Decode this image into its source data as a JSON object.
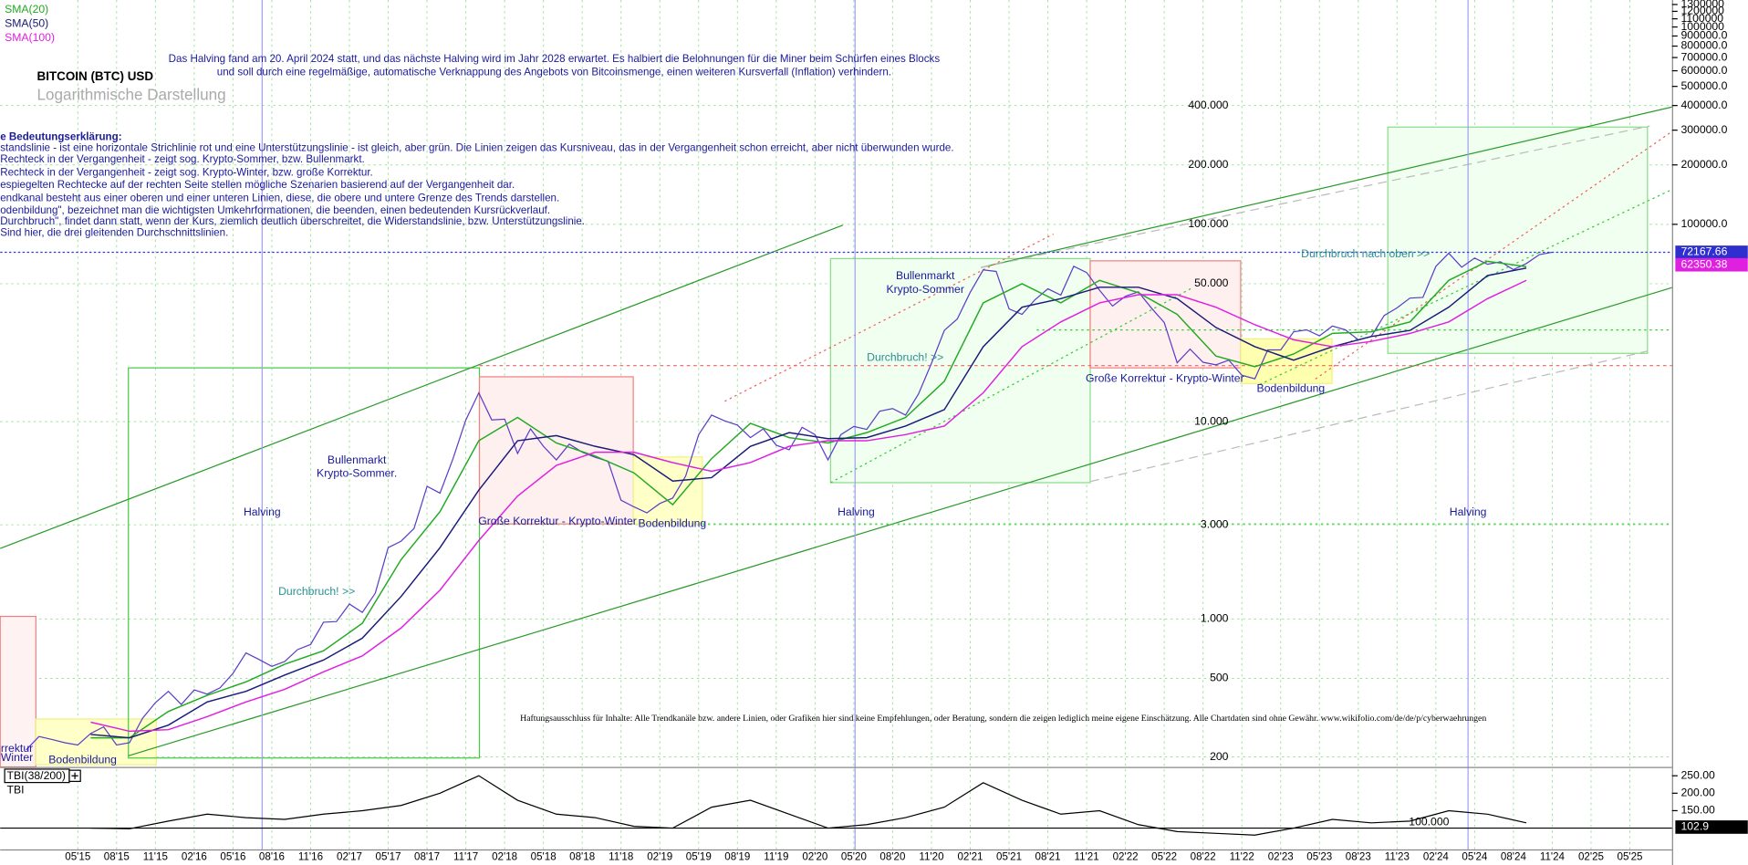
{
  "chart_data": [
    {
      "type": "line",
      "title": "BITCOIN (BTC) USD",
      "subtitle": "Logarithmische Darstellung",
      "log_scale": true,
      "grid": true,
      "halving_note": [
        "Das Halving fand am 20. April 2024 statt, und das nächste Halving wird im Jahr 2028 erwartet. Es halbiert die Belohnungen für die Miner beim Schürfen eines Blocks",
        "und soll durch eine regelmäßige, automatische Verknappung des Angebots von Bitcoinsmenge, einen weiteren Kursverfall (Inflation) verhindern."
      ],
      "notes": [
        "e Bedeutungserklärung:",
        "standslinie - ist eine horizontale Strichlinie rot und eine Unterstützungslinie - ist gleich, aber grün. Die Linien zeigen das Kursniveau, das in der Vergangenheit schon erreicht, aber nicht überwunden wurde.",
        "Rechteck in der Vergangenheit - zeigt sog. Krypto-Sommer, bzw. Bullenmarkt.",
        "Rechteck in der Vergangenheit - zeigt sog. Krypto-Winter, bzw. große Korrektur.",
        "espiegelten Rechtecke auf der rechten Seite stellen mögliche Szenarien basierend auf der Vergangenheit dar.",
        "endkanal besteht aus einer oberen und einer unteren Linien, diese, die obere und untere Grenze des Trends darstellen.",
        "odenbildung\", bezeichnet man die wichtigsten Umkehrformationen, die beenden, einen bedeutenden Kursrückverlauf.",
        "Durchbruch\", findet dann statt, wenn der Kurs, ziemlich deutlich überschreitet, die Widerstandslinie, bzw. Unterstützungslinie.",
        "Sind hier, die drei gleitenden Durchschnittslinien."
      ],
      "annotations": [
        "Bullenmarkt",
        "Krypto-Sommer.",
        "Halving",
        "Durchbruch! >>",
        "Große Korrektur - Krypto-Winter",
        "Bodenbildung",
        "Halving",
        "Bullenmarkt",
        "Krypto-Sommer",
        "Durchbruch! >>",
        "Große Korrektur - Krypto-Winter",
        "Bodenbildung",
        "Durchbruch nach oben >>",
        "Halving",
        "rrektur",
        "Winter",
        "Bodenbildung"
      ],
      "disclaimer": "Haftungsausschluss für Inhalte: Alle Trendkanäle bzw. andere Linien, oder Grafiken hier sind keine Empfehlungen, oder Beratung, sondern die zeigen lediglich meine eigene Einschätzung. Alle Chartdaten sind ohne Gewähr.  www.wikifolio.com/de/de/p/cyberwaehrungen",
      "xlim": [
        "2014-11",
        "2025-08"
      ],
      "ylim": [
        178,
        1370000
      ],
      "yticks": [
        {
          "value": 400000,
          "label": "400.000"
        },
        {
          "value": 200000,
          "label": "200.000"
        },
        {
          "value": 100000,
          "label": "100.000"
        },
        {
          "value": 50000,
          "label": "50.000"
        },
        {
          "value": 10000,
          "label": "10.000"
        },
        {
          "value": 3000,
          "label": "3.000"
        },
        {
          "value": 1000,
          "label": "1.000"
        },
        500,
        200
      ],
      "y2lim": [
        178,
        1370000
      ],
      "y2ticks": [
        1300000,
        1200000,
        1100000,
        1000000,
        {
          "value": 900000,
          "label": "900000.0"
        },
        {
          "value": 800000,
          "label": "800000.0"
        },
        {
          "value": 700000,
          "label": "700000.0"
        },
        {
          "value": 600000,
          "label": "600000.0"
        },
        {
          "value": 500000,
          "label": "500000.0"
        },
        {
          "value": 400000,
          "label": "400000.0"
        },
        {
          "value": 300000,
          "label": "300000.0"
        },
        {
          "value": 200000,
          "label": "200000.0"
        },
        {
          "value": 100000,
          "label": "100000.0"
        }
      ],
      "last_price": 72167.66,
      "sma_last": 62350.38,
      "series": [
        {
          "color": "#5a3cc8",
          "x": [
            "2015-01",
            "2015-02",
            "2015-03",
            "2015-04",
            "2015-05",
            "2015-06",
            "2015-07",
            "2015-08",
            "2015-09",
            "2015-10",
            "2015-11",
            "2015-12",
            "2016-01",
            "2016-02",
            "2016-03",
            "2016-04",
            "2016-05",
            "2016-06",
            "2016-07",
            "2016-08",
            "2016-09",
            "2016-10",
            "2016-11",
            "2016-12",
            "2017-01",
            "2017-02",
            "2017-03",
            "2017-04",
            "2017-05",
            "2017-06",
            "2017-07",
            "2017-08",
            "2017-09",
            "2017-10",
            "2017-11",
            "2017-12",
            "2018-01",
            "2018-02",
            "2018-03",
            "2018-04",
            "2018-05",
            "2018-06",
            "2018-07",
            "2018-08",
            "2018-09",
            "2018-10",
            "2018-11",
            "2018-12",
            "2019-01",
            "2019-02",
            "2019-03",
            "2019-04",
            "2019-05",
            "2019-06",
            "2019-07",
            "2019-08",
            "2019-09",
            "2019-10",
            "2019-11",
            "2019-12",
            "2020-01",
            "2020-02",
            "2020-03",
            "2020-04",
            "2020-05",
            "2020-06",
            "2020-07",
            "2020-08",
            "2020-09",
            "2020-10",
            "2020-11",
            "2020-12",
            "2021-01",
            "2021-02",
            "2021-03",
            "2021-04",
            "2021-05",
            "2021-06",
            "2021-07",
            "2021-08",
            "2021-09",
            "2021-10",
            "2021-11",
            "2021-12",
            "2022-01",
            "2022-02",
            "2022-03",
            "2022-04",
            "2022-05",
            "2022-06",
            "2022-07",
            "2022-08",
            "2022-09",
            "2022-10",
            "2022-11",
            "2022-12",
            "2023-01",
            "2023-02",
            "2023-03",
            "2023-04",
            "2023-05",
            "2023-06",
            "2023-07",
            "2023-08",
            "2023-09",
            "2023-10",
            "2023-11",
            "2023-12",
            "2024-01",
            "2024-02",
            "2024-03",
            "2024-04",
            "2024-05",
            "2024-06",
            "2024-07",
            "2024-08",
            "2024-09",
            "2024-10",
            "2024-11"
          ],
          "values": [
            217,
            254,
            245,
            236,
            230,
            263,
            284,
            230,
            236,
            314,
            377,
            430,
            369,
            437,
            416,
            448,
            531,
            673,
            624,
            575,
            609,
            700,
            742,
            963,
            970,
            1190,
            1080,
            1350,
            2300,
            2480,
            2875,
            4700,
            4340,
            6470,
            10200,
            14000,
            10200,
            10300,
            6900,
            9200,
            7500,
            6400,
            7700,
            7000,
            6600,
            6300,
            4000,
            3700,
            3450,
            3850,
            4100,
            5300,
            8600,
            10800,
            10100,
            9600,
            8300,
            9200,
            7600,
            7200,
            9350,
            8600,
            6400,
            8600,
            9450,
            9140,
            11300,
            11650,
            10800,
            13800,
            19700,
            29000,
            33100,
            45200,
            58800,
            57700,
            37300,
            35000,
            41500,
            47100,
            43800,
            61300,
            57000,
            46300,
            38500,
            43200,
            45500,
            37700,
            31800,
            19900,
            23300,
            20000,
            19400,
            20500,
            17200,
            16500,
            23100,
            23100,
            28500,
            29200,
            27200,
            30500,
            29200,
            26000,
            27000,
            34500,
            37700,
            42300,
            42600,
            61200,
            71300,
            60600,
            67500,
            62700,
            64600,
            58900,
            63300,
            70200,
            72167.66
          ]
        },
        {
          "name": "SMA(20)",
          "color": "#22aa22",
          "x": [
            "2015-06",
            "2015-09",
            "2015-12",
            "2016-03",
            "2016-06",
            "2016-09",
            "2016-12",
            "2017-03",
            "2017-06",
            "2017-09",
            "2017-12",
            "2018-03",
            "2018-06",
            "2018-09",
            "2018-12",
            "2019-03",
            "2019-06",
            "2019-09",
            "2019-12",
            "2020-03",
            "2020-06",
            "2020-09",
            "2020-12",
            "2021-03",
            "2021-06",
            "2021-09",
            "2021-12",
            "2022-03",
            "2022-06",
            "2022-09",
            "2022-12",
            "2023-03",
            "2023-06",
            "2023-09",
            "2023-12",
            "2024-03",
            "2024-06",
            "2024-09"
          ],
          "values": [
            250,
            250,
            340,
            410,
            480,
            590,
            690,
            950,
            2000,
            3500,
            8000,
            10500,
            7800,
            6700,
            5500,
            3800,
            6500,
            9800,
            8300,
            7800,
            8800,
            10500,
            16000,
            40000,
            50000,
            40000,
            52000,
            45000,
            35000,
            21500,
            19000,
            22000,
            28000,
            28500,
            32000,
            52000,
            65000,
            61000
          ]
        },
        {
          "name": "SMA(50)",
          "color": "#1a1a7a",
          "x": [
            "2015-06",
            "2015-09",
            "2015-12",
            "2016-03",
            "2016-06",
            "2016-09",
            "2016-12",
            "2017-03",
            "2017-06",
            "2017-09",
            "2017-12",
            "2018-03",
            "2018-06",
            "2018-09",
            "2018-12",
            "2019-03",
            "2019-06",
            "2019-09",
            "2019-12",
            "2020-03",
            "2020-06",
            "2020-09",
            "2020-12",
            "2021-03",
            "2021-06",
            "2021-09",
            "2021-12",
            "2022-03",
            "2022-06",
            "2022-09",
            "2022-12",
            "2023-03",
            "2023-06",
            "2023-09",
            "2023-12",
            "2024-03",
            "2024-06",
            "2024-09"
          ],
          "values": [
            260,
            250,
            290,
            380,
            430,
            520,
            620,
            800,
            1300,
            2300,
            4500,
            8000,
            8500,
            7500,
            6800,
            5000,
            5200,
            7500,
            8800,
            8200,
            8300,
            9500,
            11500,
            24000,
            38000,
            42000,
            48000,
            48000,
            42000,
            30000,
            24000,
            20500,
            24000,
            27000,
            29000,
            38000,
            55000,
            60000
          ]
        },
        {
          "name": "SMA(100)",
          "color": "#e020e0",
          "x": [
            "2015-06",
            "2015-09",
            "2015-12",
            "2016-03",
            "2016-06",
            "2016-09",
            "2016-12",
            "2017-03",
            "2017-06",
            "2017-09",
            "2017-12",
            "2018-03",
            "2018-06",
            "2018-09",
            "2018-12",
            "2019-03",
            "2019-06",
            "2019-09",
            "2019-12",
            "2020-03",
            "2020-06",
            "2020-09",
            "2020-12",
            "2021-03",
            "2021-06",
            "2021-09",
            "2021-12",
            "2022-03",
            "2022-06",
            "2022-09",
            "2022-12",
            "2023-03",
            "2023-06",
            "2023-09",
            "2023-12",
            "2024-03",
            "2024-06",
            "2024-09"
          ],
          "values": [
            300,
            270,
            275,
            320,
            380,
            440,
            540,
            650,
            900,
            1400,
            2500,
            4200,
            6000,
            7000,
            7000,
            6200,
            5600,
            6200,
            7500,
            8000,
            8000,
            8600,
            9500,
            14000,
            24000,
            32000,
            40000,
            44000,
            44000,
            38000,
            31000,
            26000,
            24000,
            25500,
            28000,
            32000,
            42000,
            52000
          ]
        }
      ]
    },
    {
      "type": "line",
      "title": "TBI(38/200)",
      "series": [
        {
          "name": "TBI",
          "color": "#000000",
          "x": [
            "2015-06",
            "2015-09",
            "2015-12",
            "2016-03",
            "2016-06",
            "2016-09",
            "2016-12",
            "2017-03",
            "2017-06",
            "2017-09",
            "2017-12",
            "2018-03",
            "2018-06",
            "2018-09",
            "2018-12",
            "2019-03",
            "2019-06",
            "2019-09",
            "2019-12",
            "2020-03",
            "2020-06",
            "2020-09",
            "2020-12",
            "2021-03",
            "2021-06",
            "2021-09",
            "2021-12",
            "2022-03",
            "2022-06",
            "2022-09",
            "2022-12",
            "2023-03",
            "2023-06",
            "2023-09",
            "2023-12",
            "2024-03",
            "2024-06",
            "2024-09"
          ],
          "values": [
            100,
            98,
            120,
            140,
            130,
            125,
            140,
            150,
            165,
            200,
            250,
            180,
            140,
            130,
            105,
            100,
            160,
            180,
            140,
            100,
            110,
            130,
            160,
            230,
            180,
            140,
            150,
            110,
            90,
            85,
            80,
            100,
            125,
            115,
            120,
            150,
            140,
            115
          ]
        }
      ],
      "reference_line": {
        "value": 100,
        "label": "100.000"
      },
      "last_value": 102.9,
      "xlim": [
        "2014-11",
        "2025-08"
      ],
      "ylim": [
        39,
        269
      ],
      "yticks": [
        {
          "value": 250,
          "label": "250.00"
        },
        {
          "value": 200,
          "label": "200.00"
        },
        {
          "value": 150,
          "label": "150.00"
        }
      ],
      "xticks": [
        {
          "value": "2015-05",
          "label": "05'15"
        },
        {
          "value": "2015-08",
          "label": "08'15"
        },
        {
          "value": "2015-11",
          "label": "11'15"
        },
        {
          "value": "2016-02",
          "label": "02'16"
        },
        {
          "value": "2016-05",
          "label": "05'16"
        },
        {
          "value": "2016-08",
          "label": "08'16"
        },
        {
          "value": "2016-11",
          "label": "11'16"
        },
        {
          "value": "2017-02",
          "label": "02'17"
        },
        {
          "value": "2017-05",
          "label": "05'17"
        },
        {
          "value": "2017-08",
          "label": "08'17"
        },
        {
          "value": "2017-11",
          "label": "11'17"
        },
        {
          "value": "2018-02",
          "label": "02'18"
        },
        {
          "value": "2018-05",
          "label": "05'18"
        },
        {
          "value": "2018-08",
          "label": "08'18"
        },
        {
          "value": "2018-11",
          "label": "11'18"
        },
        {
          "value": "2019-02",
          "label": "02'19"
        },
        {
          "value": "2019-05",
          "label": "05'19"
        },
        {
          "value": "2019-08",
          "label": "08'19"
        },
        {
          "value": "2019-11",
          "label": "11'19"
        },
        {
          "value": "2020-02",
          "label": "02'20"
        },
        {
          "value": "2020-05",
          "label": "05'20"
        },
        {
          "value": "2020-08",
          "label": "08'20"
        },
        {
          "value": "2020-11",
          "label": "11'20"
        },
        {
          "value": "2021-02",
          "label": "02'21"
        },
        {
          "value": "2021-05",
          "label": "05'21"
        },
        {
          "value": "2021-08",
          "label": "08'21"
        },
        {
          "value": "2021-11",
          "label": "11'21"
        },
        {
          "value": "2022-02",
          "label": "02'22"
        },
        {
          "value": "2022-05",
          "label": "05'22"
        },
        {
          "value": "2022-08",
          "label": "08'22"
        },
        {
          "value": "2022-11",
          "label": "11'22"
        },
        {
          "value": "2023-02",
          "label": "02'23"
        },
        {
          "value": "2023-05",
          "label": "05'23"
        },
        {
          "value": "2023-08",
          "label": "08'23"
        },
        {
          "value": "2023-11",
          "label": "11'23"
        },
        {
          "value": "2024-02",
          "label": "02'24"
        },
        {
          "value": "2024-05",
          "label": "05'24"
        },
        {
          "value": "2024-08",
          "label": "08'24"
        },
        {
          "value": "2024-11",
          "label": "11'24"
        },
        {
          "value": "2025-02",
          "label": "02'25"
        },
        {
          "value": "2025-05",
          "label": "05'25"
        }
      ]
    }
  ]
}
